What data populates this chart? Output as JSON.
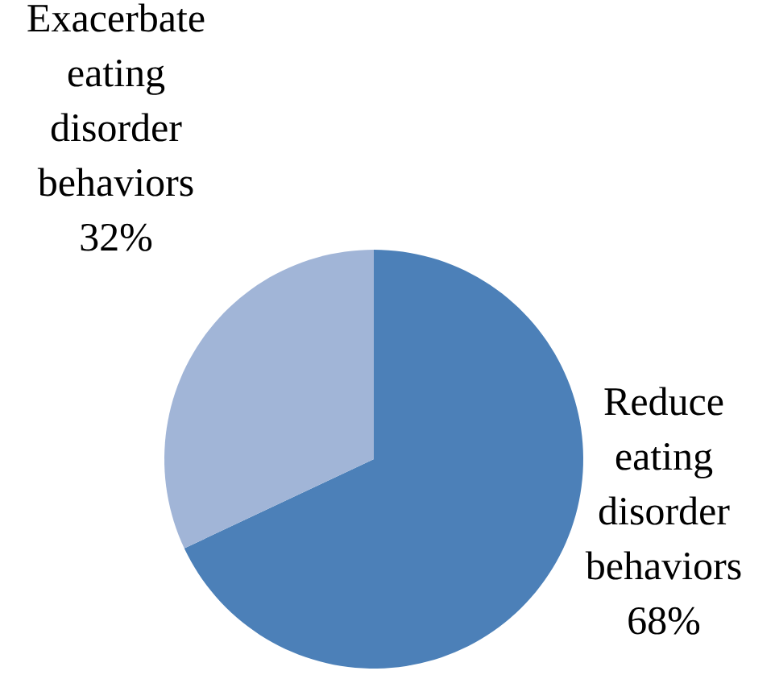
{
  "chart_data": {
    "type": "pie",
    "categories": [
      "Reduce eating disorder behaviors",
      "Exacerbate eating disorder behaviors"
    ],
    "values": [
      68,
      32
    ],
    "colors": [
      "#4c80b8",
      "#a1b5d7"
    ],
    "value_labels": [
      "68%",
      "32%"
    ]
  }
}
